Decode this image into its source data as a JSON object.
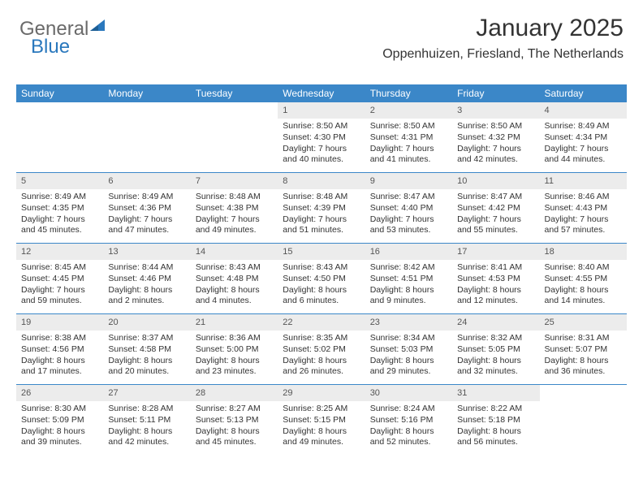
{
  "logo": {
    "part1": "General",
    "part2": "Blue"
  },
  "title": "January 2025",
  "location": "Oppenhuizen, Friesland, The Netherlands",
  "colors": {
    "header_bg": "#3b87c8",
    "header_text": "#ffffff",
    "daynum_bg": "#ececec",
    "daynum_text": "#555555",
    "text": "#333333",
    "rule": "#3b87c8",
    "logo_gray": "#6a6a6a",
    "logo_blue": "#2a78bd"
  },
  "day_labels": [
    "Sunday",
    "Monday",
    "Tuesday",
    "Wednesday",
    "Thursday",
    "Friday",
    "Saturday"
  ],
  "weeks": [
    [
      {
        "n": "",
        "sr": "",
        "ss": "",
        "d1": "",
        "d2": "",
        "empty": true
      },
      {
        "n": "",
        "sr": "",
        "ss": "",
        "d1": "",
        "d2": "",
        "empty": true
      },
      {
        "n": "",
        "sr": "",
        "ss": "",
        "d1": "",
        "d2": "",
        "empty": true
      },
      {
        "n": "1",
        "sr": "Sunrise: 8:50 AM",
        "ss": "Sunset: 4:30 PM",
        "d1": "Daylight: 7 hours",
        "d2": "and 40 minutes."
      },
      {
        "n": "2",
        "sr": "Sunrise: 8:50 AM",
        "ss": "Sunset: 4:31 PM",
        "d1": "Daylight: 7 hours",
        "d2": "and 41 minutes."
      },
      {
        "n": "3",
        "sr": "Sunrise: 8:50 AM",
        "ss": "Sunset: 4:32 PM",
        "d1": "Daylight: 7 hours",
        "d2": "and 42 minutes."
      },
      {
        "n": "4",
        "sr": "Sunrise: 8:49 AM",
        "ss": "Sunset: 4:34 PM",
        "d1": "Daylight: 7 hours",
        "d2": "and 44 minutes."
      }
    ],
    [
      {
        "n": "5",
        "sr": "Sunrise: 8:49 AM",
        "ss": "Sunset: 4:35 PM",
        "d1": "Daylight: 7 hours",
        "d2": "and 45 minutes."
      },
      {
        "n": "6",
        "sr": "Sunrise: 8:49 AM",
        "ss": "Sunset: 4:36 PM",
        "d1": "Daylight: 7 hours",
        "d2": "and 47 minutes."
      },
      {
        "n": "7",
        "sr": "Sunrise: 8:48 AM",
        "ss": "Sunset: 4:38 PM",
        "d1": "Daylight: 7 hours",
        "d2": "and 49 minutes."
      },
      {
        "n": "8",
        "sr": "Sunrise: 8:48 AM",
        "ss": "Sunset: 4:39 PM",
        "d1": "Daylight: 7 hours",
        "d2": "and 51 minutes."
      },
      {
        "n": "9",
        "sr": "Sunrise: 8:47 AM",
        "ss": "Sunset: 4:40 PM",
        "d1": "Daylight: 7 hours",
        "d2": "and 53 minutes."
      },
      {
        "n": "10",
        "sr": "Sunrise: 8:47 AM",
        "ss": "Sunset: 4:42 PM",
        "d1": "Daylight: 7 hours",
        "d2": "and 55 minutes."
      },
      {
        "n": "11",
        "sr": "Sunrise: 8:46 AM",
        "ss": "Sunset: 4:43 PM",
        "d1": "Daylight: 7 hours",
        "d2": "and 57 minutes."
      }
    ],
    [
      {
        "n": "12",
        "sr": "Sunrise: 8:45 AM",
        "ss": "Sunset: 4:45 PM",
        "d1": "Daylight: 7 hours",
        "d2": "and 59 minutes."
      },
      {
        "n": "13",
        "sr": "Sunrise: 8:44 AM",
        "ss": "Sunset: 4:46 PM",
        "d1": "Daylight: 8 hours",
        "d2": "and 2 minutes."
      },
      {
        "n": "14",
        "sr": "Sunrise: 8:43 AM",
        "ss": "Sunset: 4:48 PM",
        "d1": "Daylight: 8 hours",
        "d2": "and 4 minutes."
      },
      {
        "n": "15",
        "sr": "Sunrise: 8:43 AM",
        "ss": "Sunset: 4:50 PM",
        "d1": "Daylight: 8 hours",
        "d2": "and 6 minutes."
      },
      {
        "n": "16",
        "sr": "Sunrise: 8:42 AM",
        "ss": "Sunset: 4:51 PM",
        "d1": "Daylight: 8 hours",
        "d2": "and 9 minutes."
      },
      {
        "n": "17",
        "sr": "Sunrise: 8:41 AM",
        "ss": "Sunset: 4:53 PM",
        "d1": "Daylight: 8 hours",
        "d2": "and 12 minutes."
      },
      {
        "n": "18",
        "sr": "Sunrise: 8:40 AM",
        "ss": "Sunset: 4:55 PM",
        "d1": "Daylight: 8 hours",
        "d2": "and 14 minutes."
      }
    ],
    [
      {
        "n": "19",
        "sr": "Sunrise: 8:38 AM",
        "ss": "Sunset: 4:56 PM",
        "d1": "Daylight: 8 hours",
        "d2": "and 17 minutes."
      },
      {
        "n": "20",
        "sr": "Sunrise: 8:37 AM",
        "ss": "Sunset: 4:58 PM",
        "d1": "Daylight: 8 hours",
        "d2": "and 20 minutes."
      },
      {
        "n": "21",
        "sr": "Sunrise: 8:36 AM",
        "ss": "Sunset: 5:00 PM",
        "d1": "Daylight: 8 hours",
        "d2": "and 23 minutes."
      },
      {
        "n": "22",
        "sr": "Sunrise: 8:35 AM",
        "ss": "Sunset: 5:02 PM",
        "d1": "Daylight: 8 hours",
        "d2": "and 26 minutes."
      },
      {
        "n": "23",
        "sr": "Sunrise: 8:34 AM",
        "ss": "Sunset: 5:03 PM",
        "d1": "Daylight: 8 hours",
        "d2": "and 29 minutes."
      },
      {
        "n": "24",
        "sr": "Sunrise: 8:32 AM",
        "ss": "Sunset: 5:05 PM",
        "d1": "Daylight: 8 hours",
        "d2": "and 32 minutes."
      },
      {
        "n": "25",
        "sr": "Sunrise: 8:31 AM",
        "ss": "Sunset: 5:07 PM",
        "d1": "Daylight: 8 hours",
        "d2": "and 36 minutes."
      }
    ],
    [
      {
        "n": "26",
        "sr": "Sunrise: 8:30 AM",
        "ss": "Sunset: 5:09 PM",
        "d1": "Daylight: 8 hours",
        "d2": "and 39 minutes."
      },
      {
        "n": "27",
        "sr": "Sunrise: 8:28 AM",
        "ss": "Sunset: 5:11 PM",
        "d1": "Daylight: 8 hours",
        "d2": "and 42 minutes."
      },
      {
        "n": "28",
        "sr": "Sunrise: 8:27 AM",
        "ss": "Sunset: 5:13 PM",
        "d1": "Daylight: 8 hours",
        "d2": "and 45 minutes."
      },
      {
        "n": "29",
        "sr": "Sunrise: 8:25 AM",
        "ss": "Sunset: 5:15 PM",
        "d1": "Daylight: 8 hours",
        "d2": "and 49 minutes."
      },
      {
        "n": "30",
        "sr": "Sunrise: 8:24 AM",
        "ss": "Sunset: 5:16 PM",
        "d1": "Daylight: 8 hours",
        "d2": "and 52 minutes."
      },
      {
        "n": "31",
        "sr": "Sunrise: 8:22 AM",
        "ss": "Sunset: 5:18 PM",
        "d1": "Daylight: 8 hours",
        "d2": "and 56 minutes."
      },
      {
        "n": "",
        "sr": "",
        "ss": "",
        "d1": "",
        "d2": "",
        "empty": true
      }
    ]
  ]
}
